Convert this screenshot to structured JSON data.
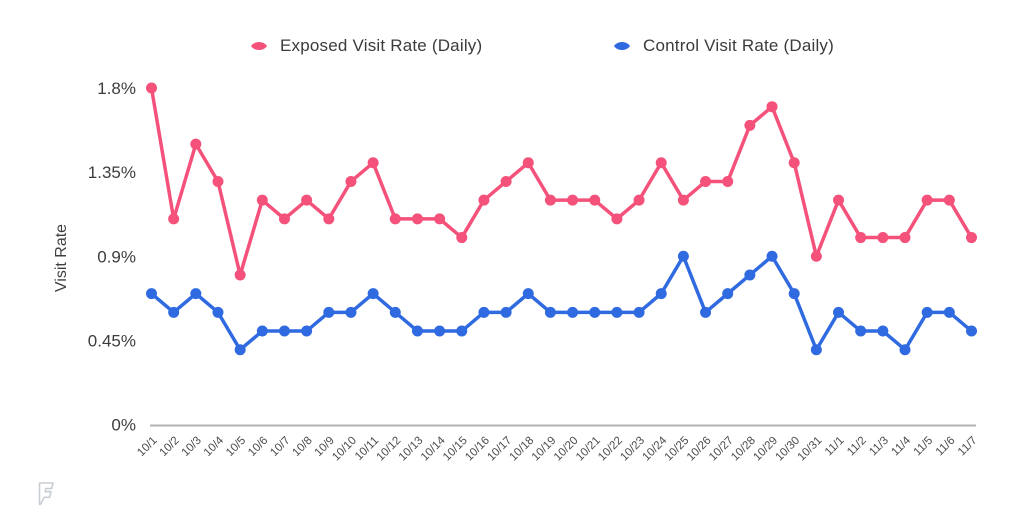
{
  "colors": {
    "exposed_series": "#f4517b",
    "control_series": "#2f6ae0",
    "axis_line": "#b3b3b3",
    "y_tick_text": "#3d3d3d",
    "x_tick_text": "#4c4c4c",
    "legend_text": "#3b3b3b",
    "logo": "#c8cdd3",
    "background": "#ffffff"
  },
  "logo": {
    "name": "foursquare-watermark"
  },
  "chart_data": {
    "type": "line",
    "title": "",
    "xlabel": "",
    "ylabel": "Visit Rate",
    "grid": false,
    "legend_position": "top",
    "ylim": [
      0,
      1.8
    ],
    "y_unit": "%",
    "yticks": {
      "values": [
        0,
        0.45,
        0.9,
        1.35,
        1.8
      ],
      "labels": [
        "0%",
        "0.45%",
        "0.9%",
        "1.35%",
        "1.8%"
      ]
    },
    "categories": [
      "10/1",
      "10/2",
      "10/3",
      "10/4",
      "10/5",
      "10/6",
      "10/7",
      "10/8",
      "10/9",
      "10/10",
      "10/11",
      "10/12",
      "10/13",
      "10/14",
      "10/15",
      "10/16",
      "10/17",
      "10/18",
      "10/19",
      "10/20",
      "10/21",
      "10/22",
      "10/23",
      "10/24",
      "10/25",
      "10/26",
      "10/27",
      "10/28",
      "10/29",
      "10/30",
      "10/31",
      "11/1",
      "11/2",
      "11/3",
      "11/4",
      "11/5",
      "11/6",
      "11/7"
    ],
    "series": [
      {
        "id": "exposed",
        "name": "Exposed Visit Rate (Daily)",
        "color": "#f4517b",
        "values": [
          1.8,
          1.1,
          1.5,
          1.3,
          0.8,
          1.2,
          1.1,
          1.2,
          1.1,
          1.3,
          1.4,
          1.1,
          1.1,
          1.1,
          1.0,
          1.2,
          1.3,
          1.4,
          1.2,
          1.2,
          1.2,
          1.1,
          1.2,
          1.4,
          1.2,
          1.3,
          1.3,
          1.6,
          1.7,
          1.4,
          0.9,
          1.2,
          1.0,
          1.0,
          1.0,
          1.2,
          1.2,
          1.0
        ]
      },
      {
        "id": "control",
        "name": "Control Visit Rate (Daily)",
        "color": "#2f6ae0",
        "values": [
          0.7,
          0.6,
          0.7,
          0.6,
          0.4,
          0.5,
          0.5,
          0.5,
          0.6,
          0.6,
          0.7,
          0.6,
          0.5,
          0.5,
          0.5,
          0.6,
          0.6,
          0.7,
          0.6,
          0.6,
          0.6,
          0.6,
          0.6,
          0.7,
          0.9,
          0.6,
          0.7,
          0.8,
          0.9,
          0.7,
          0.4,
          0.6,
          0.5,
          0.5,
          0.4,
          0.6,
          0.6,
          0.5
        ]
      }
    ]
  }
}
